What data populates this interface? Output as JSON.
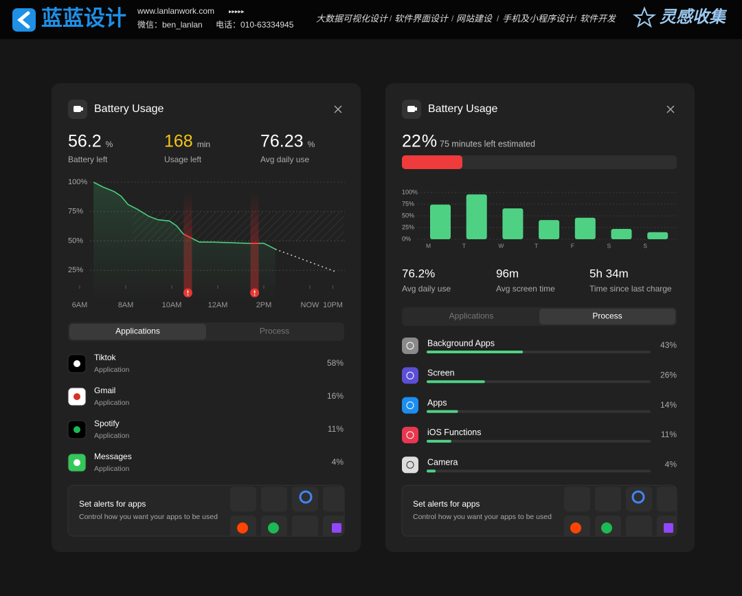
{
  "header": {
    "brand": "蓝蓝设计",
    "url": "www.lanlanwork.com",
    "arrows": "▸▸▸▸▸",
    "wechat": "微信：ben_lanlan",
    "phone": "电话：010-63334945",
    "services": [
      "大数据可视化设计",
      "软件界面设计",
      "网站建设",
      "手机及小程序设计",
      "软件开发"
    ],
    "separator": "/",
    "logo2": "灵感收集"
  },
  "left": {
    "title": "Battery Usage",
    "stats": [
      {
        "value": 56.2,
        "unit": "%",
        "label": "Battery left"
      },
      {
        "value": 168,
        "unit": "min",
        "label": "Usage left"
      },
      {
        "value": 76.23,
        "unit": "%",
        "label": "Avg daily use"
      }
    ],
    "chart": {
      "type": "line",
      "xlim": [
        5.5,
        17.5
      ],
      "ylim": [
        0,
        100
      ],
      "yticks": [
        {
          "value": 100,
          "label": "100%"
        },
        {
          "value": 75,
          "label": "75%"
        },
        {
          "value": 50,
          "label": "50%"
        },
        {
          "value": 25,
          "label": "25%"
        }
      ],
      "xticks": [
        {
          "value": 6,
          "label": "6AM"
        },
        {
          "value": 8,
          "label": "8AM"
        },
        {
          "value": 10,
          "label": "10AM"
        },
        {
          "value": 12,
          "label": "12AM"
        },
        {
          "value": 14,
          "label": "2PM"
        },
        {
          "value": 16,
          "label": "NOW"
        },
        {
          "value": 17,
          "label": "10PM"
        }
      ],
      "x": [
        6.6,
        7.0,
        7.5,
        7.8,
        8.1,
        8.5,
        9.0,
        9.4,
        9.9,
        10.2,
        10.5,
        10.9,
        11.2,
        11.8,
        13.3,
        14.0,
        14.5
      ],
      "values": [
        100,
        96,
        92,
        88,
        81,
        77,
        71,
        68,
        67,
        63,
        56,
        52,
        49,
        49,
        48,
        48,
        43
      ],
      "color": "#4ad07e",
      "projection": {
        "x": [
          14.5,
          17.1
        ],
        "values": [
          43,
          24
        ]
      },
      "alerts_x": [
        10.7,
        13.6
      ]
    },
    "tabs": [
      "Applications",
      "Process"
    ],
    "active_tab": 0,
    "apps": [
      {
        "name": "Tiktok",
        "kind": "Application",
        "share": "58%"
      },
      {
        "name": "Gmail",
        "kind": "Application",
        "share": "16%"
      },
      {
        "name": "Spotify",
        "kind": "Application",
        "share": "11%"
      },
      {
        "name": "Messages",
        "kind": "Application",
        "share": "4%"
      }
    ],
    "alert_box": {
      "title": "Set alerts for apps",
      "text": "Control how you want your apps to be used"
    }
  },
  "right": {
    "title": "Battery Usage",
    "battery": {
      "value": 22,
      "unit": "%",
      "note": "75 minutes left estimated",
      "color": "#ef3b3b"
    },
    "chart": {
      "type": "bar",
      "categories": [
        "M",
        "T",
        "W",
        "T",
        "F",
        "S",
        "S"
      ],
      "values": [
        74,
        96,
        66,
        41,
        46,
        22,
        15
      ],
      "color": "#4fd183",
      "ylim": [
        0,
        100
      ],
      "yticks": [
        {
          "value": 100,
          "label": "100%"
        },
        {
          "value": 75,
          "label": "75%"
        },
        {
          "value": 50,
          "label": "50%"
        },
        {
          "value": 25,
          "label": "25%"
        },
        {
          "value": 0,
          "label": "0%"
        }
      ]
    },
    "stats": [
      {
        "value": "76.2%",
        "label": "Avg daily use"
      },
      {
        "value": "96m",
        "label": "Avg screen time"
      },
      {
        "value": "5h 34m",
        "label": "Time since last charge"
      }
    ],
    "tabs": [
      "Applications",
      "Process"
    ],
    "active_tab": 1,
    "processes": [
      {
        "name": "Background Apps",
        "value": 43,
        "label": "43%"
      },
      {
        "name": "Screen",
        "value": 26,
        "label": "26%"
      },
      {
        "name": "Apps",
        "value": 14,
        "label": "14%"
      },
      {
        "name": "iOS Functions",
        "value": 11,
        "label": "11%"
      },
      {
        "name": "Camera",
        "value": 4,
        "label": "4%"
      }
    ],
    "alert_box": {
      "title": "Set alerts for apps",
      "text": "Control how you want your apps to be used"
    }
  }
}
